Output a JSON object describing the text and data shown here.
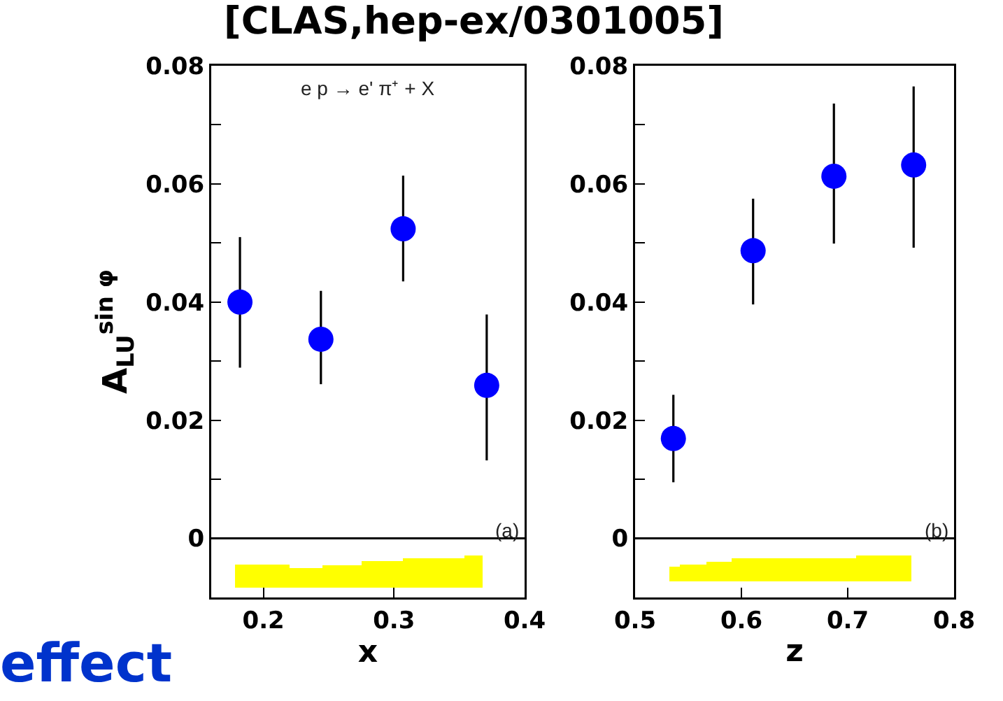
{
  "chart_data": [
    {
      "type": "scatter",
      "title": "[CLAS,hep-ex/0301005]",
      "xlabel": "x",
      "ylabel": "A$_{LU}$$^{sin φ}$",
      "annotations": [
        "e p → e' π⁺ + X",
        "(a)",
        "effect"
      ],
      "xlim": [
        0.16,
        0.4
      ],
      "xticks": [
        0.2,
        0.3,
        0.4
      ],
      "ylim": [
        -0.01,
        0.08
      ],
      "yticks": [
        0,
        {
          "value": 0.01,
          "label": null
        },
        0.02,
        {
          "value": 0.03,
          "label": null
        },
        0.04,
        {
          "value": 0.05,
          "label": null
        },
        0.06,
        {
          "value": 0.07,
          "label": null
        },
        0.08
      ],
      "grid": false,
      "ref_lines": [
        {
          "axis": "y",
          "value": 0,
          "color": "#000000",
          "line_style": "solid"
        }
      ],
      "series": [
        {
          "color": "#0000ff",
          "marker": "circle",
          "x": [
            0.182,
            0.244,
            0.307,
            0.371
          ],
          "values": [
            0.04,
            0.0337,
            0.0524,
            0.0259
          ],
          "errors": [
            [
              0.0289,
              0.051
            ],
            [
              0.0261,
              0.0419
            ],
            [
              0.0435,
              0.0614
            ],
            [
              0.0132,
              0.0379
            ]
          ]
        },
        {
          "type": "histogram",
          "color": "#ffff00",
          "bins": [
            0.178,
            0.22,
            0.245,
            0.275,
            0.307,
            0.354,
            0.368
          ],
          "base": [
            -0.0084,
            -0.0084,
            -0.0084,
            -0.0084,
            -0.0084,
            -0.0084
          ],
          "values": [
            0.004,
            0.0034,
            0.0038,
            0.0046,
            0.005,
            0.0055
          ]
        }
      ]
    },
    {
      "type": "scatter",
      "xlabel": "z",
      "annotations": [
        "(b)"
      ],
      "xlim": [
        0.5,
        0.8
      ],
      "xticks": [
        0.5,
        0.6,
        0.7,
        0.8
      ],
      "ylim": [
        -0.01,
        0.08
      ],
      "yticks": [
        0,
        {
          "value": 0.01,
          "label": null
        },
        0.02,
        {
          "value": 0.03,
          "label": null
        },
        0.04,
        {
          "value": 0.05,
          "label": null
        },
        0.06,
        {
          "value": 0.07,
          "label": null
        },
        0.08
      ],
      "grid": false,
      "ref_lines": [
        {
          "axis": "y",
          "value": 0,
          "color": "#000000",
          "line_style": "solid"
        }
      ],
      "series": [
        {
          "color": "#0000ff",
          "marker": "circle",
          "x": [
            0.536,
            0.611,
            0.687,
            0.762
          ],
          "values": [
            0.0169,
            0.0487,
            0.0613,
            0.0632
          ],
          "errors": [
            [
              0.0095,
              0.0243
            ],
            [
              0.0396,
              0.0575
            ],
            [
              0.0499,
              0.0736
            ],
            [
              0.0492,
              0.0765
            ]
          ]
        },
        {
          "type": "histogram",
          "color": "#ffff00",
          "bins": [
            0.532,
            0.542,
            0.567,
            0.591,
            0.708,
            0.76
          ],
          "base": [
            -0.0073,
            -0.0073,
            -0.0073,
            -0.0073,
            -0.0073
          ],
          "values": [
            0.0025,
            0.0029,
            0.0033,
            0.0039,
            0.0044
          ]
        }
      ]
    }
  ]
}
